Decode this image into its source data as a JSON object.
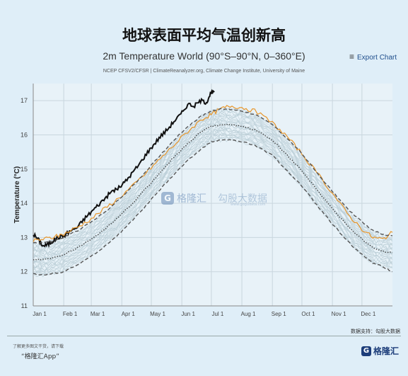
{
  "header": {
    "main_title": "地球表面平均气温创新高"
  },
  "chart_header": {
    "title": "2m Temperature World (90°S–90°N, 0–360°E)",
    "export_label": "Export Chart",
    "export_icon": "menu-icon",
    "credits": "NCEP CFSV2/CFSR | ClimateReanalyzer.org, Climate Change Institute, University of Maine"
  },
  "watermark": {
    "brand": "格隆汇",
    "site": "勾股大数据",
    "url": "www.gogudata.com"
  },
  "footer": {
    "data_source": "数据支持：勾股大数据",
    "note": "了解更多图文干货，请下载",
    "app": "“格隆汇App”",
    "logo_text": "格隆汇"
  },
  "colors": {
    "current_year": "#111111",
    "prior_year": "#e8962a",
    "mean": "#444444",
    "band": "#555555",
    "history": "#b9cdd6"
  },
  "chart_data": {
    "type": "line",
    "title": "2m Temperature World (90°S–90°N, 0–360°E)",
    "xlabel": "",
    "ylabel": "Temperature (°C)",
    "xlim": [
      0,
      365
    ],
    "ylim": [
      11,
      17.5
    ],
    "yticks": [
      11,
      12,
      13,
      14,
      15,
      16,
      17
    ],
    "xticks": [
      {
        "label": "Jan 1",
        "day": 0
      },
      {
        "label": "Feb 1",
        "day": 31
      },
      {
        "label": "Mar 1",
        "day": 59
      },
      {
        "label": "Apr 1",
        "day": 90
      },
      {
        "label": "May 1",
        "day": 120
      },
      {
        "label": "Jun 1",
        "day": 151
      },
      {
        "label": "Jul 1",
        "day": 181
      },
      {
        "label": "Aug 1",
        "day": 212
      },
      {
        "label": "Sep 1",
        "day": 243
      },
      {
        "label": "Oct 1",
        "day": 273
      },
      {
        "label": "Nov 1",
        "day": 304
      },
      {
        "label": "Dec 1",
        "day": 334
      }
    ],
    "grid": true,
    "series": [
      {
        "style": "solid",
        "color": "#111111",
        "width": 2.0,
        "x": [
          0,
          5,
          10,
          15,
          20,
          25,
          31,
          38,
          45,
          52,
          59,
          66,
          73,
          80,
          87,
          94,
          101,
          108,
          115,
          122,
          129,
          136,
          143,
          150,
          157,
          164,
          170,
          176,
          180,
          184
        ],
        "y": [
          13.1,
          12.95,
          12.75,
          12.8,
          12.9,
          13.0,
          13.05,
          13.2,
          13.3,
          13.55,
          13.75,
          13.95,
          14.15,
          14.35,
          14.45,
          14.65,
          14.9,
          15.15,
          15.45,
          15.7,
          15.95,
          16.15,
          16.4,
          16.6,
          16.9,
          16.85,
          17.0,
          16.95,
          17.2,
          17.25
        ]
      },
      {
        "style": "solid",
        "color": "#e8962a",
        "width": 1.2,
        "x": [
          0,
          10,
          20,
          31,
          45,
          59,
          73,
          87,
          101,
          115,
          129,
          143,
          157,
          171,
          181,
          190,
          200,
          212,
          225,
          243,
          258,
          273,
          288,
          304,
          319,
          334,
          345,
          355,
          365
        ],
        "y": [
          12.9,
          12.95,
          13.0,
          13.1,
          13.3,
          13.55,
          13.85,
          14.15,
          14.5,
          14.9,
          15.3,
          15.7,
          16.1,
          16.45,
          16.6,
          16.75,
          16.85,
          16.8,
          16.7,
          16.35,
          15.95,
          15.45,
          14.9,
          14.3,
          13.7,
          13.25,
          13.0,
          12.95,
          13.15
        ]
      },
      {
        "style": "dotted",
        "color": "#444444",
        "width": 1.4,
        "x": [
          0,
          10,
          20,
          31,
          45,
          59,
          73,
          87,
          101,
          115,
          129,
          143,
          157,
          171,
          181,
          190,
          200,
          212,
          225,
          243,
          258,
          273,
          288,
          304,
          319,
          334,
          345,
          355,
          365
        ],
        "y": [
          12.35,
          12.35,
          12.4,
          12.5,
          12.7,
          12.95,
          13.25,
          13.6,
          14.0,
          14.45,
          14.9,
          15.35,
          15.75,
          16.1,
          16.25,
          16.3,
          16.3,
          16.25,
          16.15,
          15.85,
          15.4,
          14.95,
          14.4,
          13.85,
          13.35,
          12.95,
          12.7,
          12.6,
          12.55
        ]
      },
      {
        "style": "dashed",
        "color": "#555555",
        "width": 1.4,
        "x": [
          0,
          10,
          20,
          31,
          45,
          59,
          73,
          87,
          101,
          115,
          129,
          143,
          157,
          171,
          181,
          190,
          200,
          212,
          225,
          243,
          258,
          273,
          288,
          304,
          319,
          334,
          345,
          355,
          365
        ],
        "y": [
          12.85,
          12.85,
          12.9,
          13.0,
          13.2,
          13.45,
          13.75,
          14.1,
          14.5,
          14.95,
          15.4,
          15.85,
          16.25,
          16.55,
          16.7,
          16.75,
          16.75,
          16.7,
          16.6,
          16.3,
          15.9,
          15.45,
          14.9,
          14.35,
          13.85,
          13.45,
          13.2,
          13.1,
          13.05
        ]
      },
      {
        "style": "dashed",
        "color": "#555555",
        "width": 1.4,
        "x": [
          0,
          10,
          20,
          31,
          45,
          59,
          73,
          87,
          101,
          115,
          129,
          143,
          157,
          171,
          181,
          190,
          200,
          212,
          225,
          243,
          258,
          273,
          288,
          304,
          319,
          334,
          345,
          355,
          365
        ],
        "y": [
          11.95,
          11.9,
          11.95,
          12.0,
          12.2,
          12.45,
          12.75,
          13.1,
          13.5,
          13.95,
          14.4,
          14.85,
          15.25,
          15.6,
          15.8,
          15.85,
          15.85,
          15.8,
          15.7,
          15.4,
          14.95,
          14.5,
          13.95,
          13.4,
          12.9,
          12.5,
          12.25,
          12.15,
          12.0
        ]
      }
    ],
    "history_band": {
      "color": "#b9cdd6",
      "count": 30,
      "base_series": 2,
      "spread": 0.45
    }
  }
}
